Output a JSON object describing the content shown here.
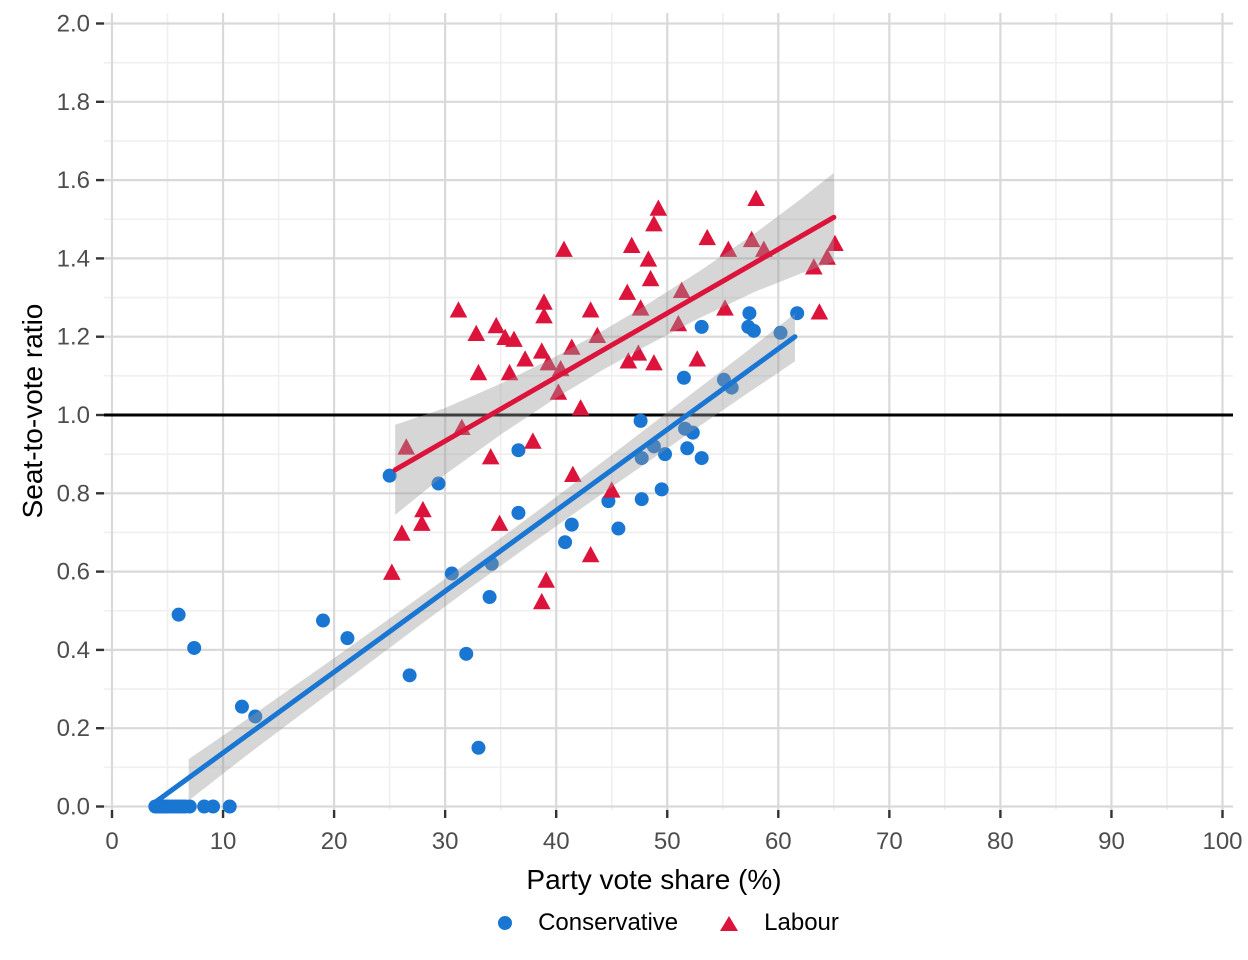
{
  "chart_data": {
    "type": "scatter",
    "title": "",
    "xlabel": "Party vote share (%)",
    "ylabel": "Seat-to-vote ratio",
    "legend_position": "bottom",
    "grid": "major+minor",
    "colors": {
      "conservative": "#1976D2",
      "labour": "#DC143C",
      "ribbon": "rgba(153,153,153,0.40)",
      "grid_major": "#D9D9D9",
      "grid_minor": "#EFEFEF",
      "reference_line": "#000000",
      "tick_text": "#4D4D4D",
      "tick_mark": "#333333"
    },
    "x_axis": {
      "range": [
        -0.7,
        101
      ],
      "tick_values": [
        0,
        10,
        20,
        30,
        40,
        50,
        60,
        70,
        80,
        90,
        100
      ],
      "tick_labels": [
        "0",
        "10",
        "20",
        "30",
        "40",
        "50",
        "60",
        "70",
        "80",
        "90",
        "100"
      ],
      "minor_tick_values": [
        5,
        15,
        25,
        35,
        45,
        55,
        65,
        75,
        85,
        95
      ]
    },
    "y_axis": {
      "range": [
        -0.01,
        2.03
      ],
      "tick_values": [
        0.0,
        0.2,
        0.4,
        0.6,
        0.8,
        1.0,
        1.2,
        1.4,
        1.6,
        1.8,
        2.0
      ],
      "tick_labels": [
        "0.0",
        "0.2",
        "0.4",
        "0.6",
        "0.8",
        "1.0",
        "1.2",
        "1.4",
        "1.6",
        "1.8",
        "2.0"
      ],
      "minor_tick_values": [
        0.1,
        0.3,
        0.5,
        0.7,
        0.9,
        1.1,
        1.3,
        1.5,
        1.7,
        1.9
      ]
    },
    "reference_line": {
      "y": 1.0
    },
    "series": [
      {
        "name": "Conservative",
        "marker": "circle",
        "color": "#1976D2",
        "points": [
          [
            3.9,
            0
          ],
          [
            4.1,
            0
          ],
          [
            4.3,
            0
          ],
          [
            4.5,
            0
          ],
          [
            4.7,
            0
          ],
          [
            4.9,
            0
          ],
          [
            5.1,
            0
          ],
          [
            5.4,
            0
          ],
          [
            5.7,
            0
          ],
          [
            6.0,
            0
          ],
          [
            6.3,
            0
          ],
          [
            6.6,
            0
          ],
          [
            7.0,
            0
          ],
          [
            8.3,
            0
          ],
          [
            9.1,
            0
          ],
          [
            10.6,
            0
          ],
          [
            6.0,
            0.49
          ],
          [
            7.4,
            0.405
          ],
          [
            11.7,
            0.255
          ],
          [
            12.9,
            0.23
          ],
          [
            19.0,
            0.475
          ],
          [
            21.2,
            0.43
          ],
          [
            25.0,
            0.845
          ],
          [
            26.8,
            0.335
          ],
          [
            29.4,
            0.825
          ],
          [
            30.6,
            0.595
          ],
          [
            31.9,
            0.39
          ],
          [
            33.0,
            0.15
          ],
          [
            34.0,
            0.535
          ],
          [
            34.2,
            0.62
          ],
          [
            36.6,
            0.75
          ],
          [
            36.6,
            0.91
          ],
          [
            40.8,
            0.675
          ],
          [
            41.4,
            0.72
          ],
          [
            44.7,
            0.78
          ],
          [
            45.6,
            0.71
          ],
          [
            47.6,
            0.985
          ],
          [
            47.7,
            0.785
          ],
          [
            47.7,
            0.89
          ],
          [
            48.8,
            0.92
          ],
          [
            49.5,
            0.81
          ],
          [
            49.8,
            0.9
          ],
          [
            51.5,
            1.095
          ],
          [
            51.6,
            0.965
          ],
          [
            51.8,
            0.915
          ],
          [
            52.3,
            0.955
          ],
          [
            53.1,
            0.89
          ],
          [
            53.1,
            1.225
          ],
          [
            55.1,
            1.09
          ],
          [
            55.8,
            1.07
          ],
          [
            57.3,
            1.225
          ],
          [
            57.4,
            1.26
          ],
          [
            57.8,
            1.215
          ],
          [
            60.2,
            1.21
          ],
          [
            61.7,
            1.26
          ]
        ],
        "trend": {
          "x": [
            3.6,
            61.5
          ],
          "y": [
            0.005,
            1.2
          ]
        },
        "ribbon": {
          "x": [
            6.9,
            12,
            20,
            28,
            32,
            38,
            45,
            52,
            57,
            61.5
          ],
          "upper": [
            0.121,
            0.22,
            0.379,
            0.541,
            0.623,
            0.748,
            0.898,
            1.05,
            1.159,
            1.259
          ],
          "lower": [
            0.015,
            0.128,
            0.299,
            0.469,
            0.553,
            0.676,
            0.816,
            0.954,
            1.051,
            1.137
          ]
        }
      },
      {
        "name": "Labour",
        "marker": "triangle",
        "color": "#DC143C",
        "points": [
          [
            25.2,
            0.595
          ],
          [
            26.1,
            0.695
          ],
          [
            26.5,
            0.915
          ],
          [
            27.9,
            0.72
          ],
          [
            28.0,
            0.755
          ],
          [
            31.2,
            1.265
          ],
          [
            31.5,
            0.965
          ],
          [
            32.8,
            1.205
          ],
          [
            33.0,
            1.105
          ],
          [
            34.1,
            0.89
          ],
          [
            34.6,
            1.225
          ],
          [
            34.9,
            0.72
          ],
          [
            35.4,
            1.195
          ],
          [
            35.8,
            1.105
          ],
          [
            36.2,
            1.19
          ],
          [
            37.2,
            1.14
          ],
          [
            37.9,
            0.93
          ],
          [
            38.7,
            1.16
          ],
          [
            38.9,
            1.285
          ],
          [
            38.9,
            1.25
          ],
          [
            39.1,
            0.575
          ],
          [
            38.7,
            0.52
          ],
          [
            39.3,
            1.13
          ],
          [
            40.2,
            1.055
          ],
          [
            40.4,
            1.115
          ],
          [
            40.7,
            1.42
          ],
          [
            41.4,
            1.17
          ],
          [
            41.5,
            0.845
          ],
          [
            42.2,
            1.015
          ],
          [
            43.1,
            1.265
          ],
          [
            43.1,
            0.64
          ],
          [
            43.7,
            1.2
          ],
          [
            45.0,
            0.805
          ],
          [
            46.4,
            1.31
          ],
          [
            46.5,
            1.135
          ],
          [
            46.8,
            1.43
          ],
          [
            47.4,
            1.155
          ],
          [
            47.6,
            1.27
          ],
          [
            48.3,
            1.395
          ],
          [
            48.5,
            1.345
          ],
          [
            48.8,
            1.485
          ],
          [
            48.8,
            1.13
          ],
          [
            49.2,
            1.525
          ],
          [
            51.0,
            1.23
          ],
          [
            51.3,
            1.315
          ],
          [
            52.7,
            1.14
          ],
          [
            53.6,
            1.45
          ],
          [
            55.2,
            1.27
          ],
          [
            55.5,
            1.42
          ],
          [
            57.6,
            1.445
          ],
          [
            58.0,
            1.55
          ],
          [
            58.7,
            1.42
          ],
          [
            63.2,
            1.375
          ],
          [
            63.7,
            1.26
          ],
          [
            64.4,
            1.4
          ],
          [
            65.1,
            1.435
          ]
        ],
        "trend": {
          "x": [
            25.5,
            65.0
          ],
          "y": [
            0.86,
            1.505
          ]
        },
        "ribbon": {
          "x": [
            25.5,
            30,
            35,
            40,
            44,
            48,
            53,
            58,
            62,
            65
          ],
          "upper": [
            0.975,
            1.018,
            1.08,
            1.15,
            1.212,
            1.279,
            1.369,
            1.466,
            1.551,
            1.618
          ],
          "lower": [
            0.745,
            0.848,
            0.95,
            1.044,
            1.112,
            1.175,
            1.249,
            1.316,
            1.361,
            1.392
          ]
        }
      }
    ]
  },
  "legend": {
    "items": [
      {
        "label": "Conservative"
      },
      {
        "label": "Labour"
      }
    ]
  }
}
